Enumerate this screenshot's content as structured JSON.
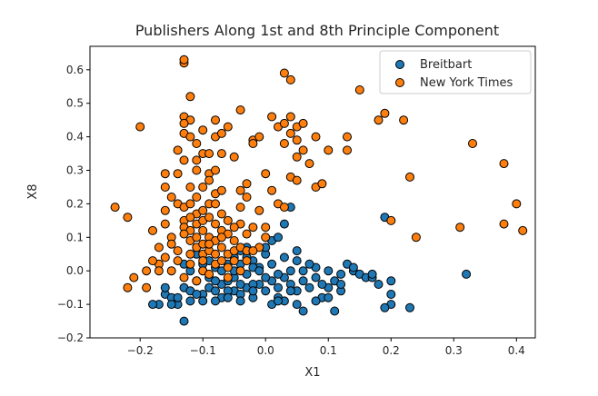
{
  "chart_data": {
    "type": "scatter",
    "title": "Publishers Along 1st and 8th Principle Component",
    "xlabel": "X1",
    "ylabel": "X8",
    "xlim": [
      -0.28,
      0.43
    ],
    "ylim": [
      -0.2,
      0.67
    ],
    "xticks": [
      -0.2,
      -0.1,
      0.0,
      0.1,
      0.2,
      0.3,
      0.4
    ],
    "yticks": [
      -0.2,
      -0.1,
      0.0,
      0.1,
      0.2,
      0.3,
      0.4,
      0.5,
      0.6
    ],
    "xtick_labels": [
      "−0.2",
      "−0.1",
      "0.0",
      "0.1",
      "0.2",
      "0.3",
      "0.4"
    ],
    "ytick_labels": [
      "−0.2",
      "−0.1",
      "0.0",
      "0.1",
      "0.2",
      "0.3",
      "0.4",
      "0.5",
      "0.6"
    ],
    "grid": false,
    "legend_position": "top-right",
    "series": [
      {
        "name": "Breitbart",
        "color": "#1f77b4",
        "points": [
          [
            -0.17,
            -0.1
          ],
          [
            -0.16,
            -0.07
          ],
          [
            -0.15,
            -0.08
          ],
          [
            -0.14,
            -0.1
          ],
          [
            -0.15,
            -0.1
          ],
          [
            -0.13,
            -0.05
          ],
          [
            -0.12,
            -0.06
          ],
          [
            -0.11,
            -0.03
          ],
          [
            -0.1,
            -0.07
          ],
          [
            -0.09,
            -0.05
          ],
          [
            -0.08,
            -0.06
          ],
          [
            -0.07,
            -0.04
          ],
          [
            -0.06,
            -0.03
          ],
          [
            -0.05,
            -0.06
          ],
          [
            -0.04,
            -0.07
          ],
          [
            -0.03,
            -0.05
          ],
          [
            -0.02,
            -0.08
          ],
          [
            -0.01,
            -0.04
          ],
          [
            0.0,
            -0.06
          ],
          [
            0.01,
            -0.03
          ],
          [
            0.02,
            -0.05
          ],
          [
            0.03,
            -0.02
          ],
          [
            0.04,
            -0.04
          ],
          [
            0.05,
            -0.06
          ],
          [
            0.06,
            -0.03
          ],
          [
            0.07,
            -0.05
          ],
          [
            0.08,
            -0.02
          ],
          [
            0.09,
            -0.08
          ],
          [
            0.1,
            -0.05
          ],
          [
            0.11,
            -0.03
          ],
          [
            0.12,
            -0.06
          ],
          [
            0.13,
            0.02
          ],
          [
            0.14,
            0.0
          ],
          [
            0.15,
            -0.01
          ],
          [
            0.16,
            -0.02
          ],
          [
            0.17,
            -0.02
          ],
          [
            -0.13,
            -0.15
          ],
          [
            -0.11,
            -0.07
          ],
          [
            -0.1,
            0.0
          ],
          [
            -0.09,
            -0.02
          ],
          [
            -0.08,
            0.01
          ],
          [
            -0.07,
            -0.08
          ],
          [
            -0.06,
            0.02
          ],
          [
            -0.05,
            -0.02
          ],
          [
            -0.04,
            0.02
          ],
          [
            -0.03,
            -0.01
          ],
          [
            -0.02,
            0.03
          ],
          [
            -0.01,
            0.01
          ],
          [
            0.0,
            0.05
          ],
          [
            0.01,
            -0.1
          ],
          [
            0.02,
            -0.08
          ],
          [
            0.03,
            -0.09
          ],
          [
            0.04,
            -0.06
          ],
          [
            0.05,
            -0.1
          ],
          [
            0.06,
            -0.12
          ],
          [
            0.08,
            -0.09
          ],
          [
            0.09,
            -0.04
          ],
          [
            0.1,
            -0.08
          ],
          [
            0.11,
            -0.12
          ],
          [
            0.12,
            -0.04
          ],
          [
            -0.18,
            -0.1
          ],
          [
            -0.16,
            -0.05
          ],
          [
            -0.14,
            -0.08
          ],
          [
            -0.12,
            -0.09
          ],
          [
            -0.1,
            -0.09
          ],
          [
            -0.08,
            -0.09
          ],
          [
            -0.06,
            -0.06
          ],
          [
            -0.04,
            -0.04
          ],
          [
            -0.02,
            -0.04
          ],
          [
            0.0,
            -0.02
          ],
          [
            0.02,
            -0.01
          ],
          [
            0.04,
            0.0
          ],
          [
            0.06,
            0.0
          ],
          [
            0.08,
            0.01
          ],
          [
            0.1,
            0.0
          ],
          [
            0.12,
            -0.01
          ],
          [
            0.14,
            0.01
          ],
          [
            0.02,
            -0.09
          ],
          [
            -0.05,
            0.04
          ],
          [
            -0.03,
            0.07
          ],
          [
            0.0,
            0.07
          ],
          [
            0.01,
            0.09
          ],
          [
            0.02,
            0.1
          ],
          [
            0.03,
            0.14
          ],
          [
            0.04,
            0.19
          ],
          [
            0.05,
            0.03
          ],
          [
            0.07,
            0.02
          ],
          [
            0.19,
            0.16
          ],
          [
            0.2,
            -0.03
          ],
          [
            0.2,
            -0.07
          ],
          [
            0.2,
            -0.1
          ],
          [
            0.23,
            -0.11
          ],
          [
            0.32,
            -0.01
          ],
          [
            0.17,
            -0.01
          ],
          [
            0.18,
            -0.04
          ],
          [
            0.19,
            -0.11
          ],
          [
            -0.12,
            0.0
          ],
          [
            -0.1,
            0.02
          ],
          [
            -0.11,
            0.05
          ],
          [
            -0.13,
            0.02
          ],
          [
            -0.09,
            0.03
          ],
          [
            -0.07,
            0.0
          ],
          [
            -0.05,
            0.0
          ],
          [
            -0.04,
            0.06
          ],
          [
            -0.03,
            0.04
          ],
          [
            -0.02,
            0.01
          ],
          [
            -0.01,
            0.0
          ],
          [
            0.01,
            0.02
          ],
          [
            0.03,
            0.04
          ],
          [
            0.05,
            0.06
          ],
          [
            -0.08,
            -0.03
          ],
          [
            -0.06,
            -0.08
          ],
          [
            -0.04,
            -0.09
          ],
          [
            -0.02,
            -0.06
          ]
        ]
      },
      {
        "name": "New York Times",
        "color": "#ff7f0e",
        "points": [
          [
            -0.24,
            0.19
          ],
          [
            -0.22,
            0.16
          ],
          [
            -0.21,
            -0.02
          ],
          [
            -0.22,
            -0.05
          ],
          [
            -0.2,
            0.43
          ],
          [
            -0.19,
            0.0
          ],
          [
            -0.19,
            -0.05
          ],
          [
            -0.18,
            0.12
          ],
          [
            -0.17,
            0.07
          ],
          [
            -0.17,
            0.02
          ],
          [
            -0.16,
            0.29
          ],
          [
            -0.16,
            0.25
          ],
          [
            -0.16,
            0.18
          ],
          [
            -0.16,
            0.14
          ],
          [
            -0.15,
            0.22
          ],
          [
            -0.15,
            0.1
          ],
          [
            -0.15,
            0.08
          ],
          [
            -0.14,
            0.29
          ],
          [
            -0.14,
            0.2
          ],
          [
            -0.14,
            0.06
          ],
          [
            -0.14,
            0.03
          ],
          [
            -0.13,
            0.62
          ],
          [
            -0.13,
            0.63
          ],
          [
            -0.13,
            0.46
          ],
          [
            -0.13,
            0.41
          ],
          [
            -0.13,
            0.33
          ],
          [
            -0.13,
            0.19
          ],
          [
            -0.13,
            0.15
          ],
          [
            -0.13,
            0.13
          ],
          [
            -0.12,
            0.52
          ],
          [
            -0.12,
            0.45
          ],
          [
            -0.12,
            0.4
          ],
          [
            -0.12,
            0.25
          ],
          [
            -0.12,
            0.12
          ],
          [
            -0.12,
            0.09
          ],
          [
            -0.12,
            0.05
          ],
          [
            -0.11,
            0.38
          ],
          [
            -0.11,
            0.3
          ],
          [
            -0.11,
            0.22
          ],
          [
            -0.11,
            0.17
          ],
          [
            -0.11,
            0.14
          ],
          [
            -0.11,
            0.1
          ],
          [
            -0.11,
            0.07
          ],
          [
            -0.1,
            0.42
          ],
          [
            -0.1,
            0.35
          ],
          [
            -0.1,
            0.18
          ],
          [
            -0.1,
            0.15
          ],
          [
            -0.1,
            0.12
          ],
          [
            -0.1,
            0.08
          ],
          [
            -0.1,
            0.05
          ],
          [
            -0.09,
            0.35
          ],
          [
            -0.09,
            0.29
          ],
          [
            -0.09,
            0.2
          ],
          [
            -0.09,
            0.16
          ],
          [
            -0.09,
            0.1
          ],
          [
            -0.09,
            0.06
          ],
          [
            -0.08,
            0.45
          ],
          [
            -0.08,
            0.4
          ],
          [
            -0.08,
            0.23
          ],
          [
            -0.08,
            0.2
          ],
          [
            -0.08,
            0.14
          ],
          [
            -0.08,
            0.09
          ],
          [
            -0.07,
            0.41
          ],
          [
            -0.07,
            0.24
          ],
          [
            -0.07,
            0.17
          ],
          [
            -0.07,
            0.12
          ],
          [
            -0.07,
            0.07
          ],
          [
            -0.06,
            0.43
          ],
          [
            -0.06,
            0.11
          ],
          [
            -0.06,
            0.05
          ],
          [
            -0.05,
            0.34
          ],
          [
            -0.05,
            0.09
          ],
          [
            -0.05,
            0.06
          ],
          [
            -0.04,
            0.24
          ],
          [
            -0.04,
            0.19
          ],
          [
            -0.04,
            0.14
          ],
          [
            -0.04,
            0.07
          ],
          [
            -0.04,
            0.48
          ],
          [
            -0.03,
            0.26
          ],
          [
            -0.03,
            0.22
          ],
          [
            -0.03,
            0.11
          ],
          [
            -0.03,
            0.06
          ],
          [
            -0.02,
            0.39
          ],
          [
            -0.02,
            0.38
          ],
          [
            -0.02,
            0.13
          ],
          [
            -0.01,
            0.4
          ],
          [
            -0.01,
            0.18
          ],
          [
            -0.01,
            0.07
          ],
          [
            0.0,
            0.29
          ],
          [
            0.0,
            0.13
          ],
          [
            0.01,
            0.46
          ],
          [
            0.01,
            0.24
          ],
          [
            0.02,
            0.43
          ],
          [
            0.02,
            0.2
          ],
          [
            0.03,
            0.59
          ],
          [
            0.03,
            0.44
          ],
          [
            0.03,
            0.38
          ],
          [
            0.03,
            0.19
          ],
          [
            0.04,
            0.57
          ],
          [
            0.04,
            0.46
          ],
          [
            0.04,
            0.41
          ],
          [
            0.04,
            0.28
          ],
          [
            0.05,
            0.43
          ],
          [
            0.05,
            0.39
          ],
          [
            0.05,
            0.34
          ],
          [
            0.05,
            0.27
          ],
          [
            0.06,
            0.36
          ],
          [
            0.06,
            0.44
          ],
          [
            0.07,
            0.32
          ],
          [
            0.08,
            0.4
          ],
          [
            0.08,
            0.25
          ],
          [
            0.09,
            0.26
          ],
          [
            0.1,
            0.36
          ],
          [
            0.13,
            0.4
          ],
          [
            0.13,
            0.36
          ],
          [
            0.15,
            0.54
          ],
          [
            0.18,
            0.45
          ],
          [
            0.19,
            0.47
          ],
          [
            0.2,
            0.15
          ],
          [
            0.22,
            0.45
          ],
          [
            0.23,
            0.28
          ],
          [
            0.24,
            0.1
          ],
          [
            0.31,
            0.13
          ],
          [
            0.33,
            0.38
          ],
          [
            0.38,
            0.32
          ],
          [
            0.38,
            0.14
          ],
          [
            0.4,
            0.2
          ],
          [
            0.41,
            0.12
          ],
          [
            -0.12,
            0.02
          ],
          [
            -0.1,
            0.0
          ],
          [
            -0.09,
            -0.01
          ],
          [
            -0.08,
            0.02
          ],
          [
            -0.11,
            -0.03
          ],
          [
            -0.07,
            0.03
          ],
          [
            -0.06,
            0.01
          ],
          [
            -0.05,
            0.03
          ],
          [
            -0.13,
            -0.02
          ],
          [
            -0.15,
            0.0
          ],
          [
            -0.16,
            0.04
          ],
          [
            -0.17,
            0.0
          ],
          [
            -0.18,
            0.03
          ],
          [
            -0.06,
            -0.02
          ],
          [
            -0.04,
            0.0
          ],
          [
            -0.03,
            0.03
          ],
          [
            -0.02,
            0.06
          ],
          [
            0.0,
            0.1
          ],
          [
            -0.14,
            0.36
          ],
          [
            -0.13,
            0.44
          ],
          [
            -0.12,
            0.2
          ],
          [
            -0.11,
            0.33
          ],
          [
            -0.1,
            0.25
          ],
          [
            -0.09,
            0.27
          ],
          [
            -0.08,
            0.3
          ],
          [
            -0.07,
            0.35
          ],
          [
            -0.06,
            0.15
          ],
          [
            -0.05,
            0.13
          ],
          [
            -0.12,
            0.16
          ],
          [
            -0.13,
            0.11
          ],
          [
            -0.1,
            0.03
          ],
          [
            -0.09,
            0.08
          ],
          [
            -0.08,
            0.05
          ],
          [
            -0.07,
            0.1
          ]
        ]
      }
    ]
  }
}
